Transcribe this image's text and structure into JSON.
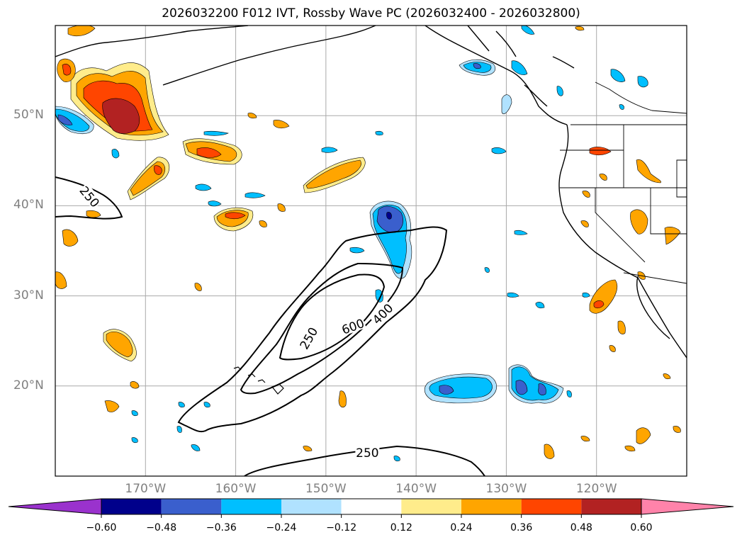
{
  "title": "2026032200 F012 IVT, Rossby Wave PC (2026032400 - 2026032800)",
  "map": {
    "lon_range": [
      -180,
      -110
    ],
    "lat_range": [
      10,
      60
    ],
    "lat_ticks": [
      {
        "value": 20,
        "label": "20°N"
      },
      {
        "value": 30,
        "label": "30°N"
      },
      {
        "value": 40,
        "label": "40°N"
      },
      {
        "value": 50,
        "label": "50°N"
      }
    ],
    "lon_ticks": [
      {
        "value": -170,
        "label": "170°W"
      },
      {
        "value": -160,
        "label": "160°W"
      },
      {
        "value": -150,
        "label": "150°W"
      },
      {
        "value": -140,
        "label": "140°W"
      },
      {
        "value": -130,
        "label": "130°W"
      },
      {
        "value": -120,
        "label": "120°W"
      }
    ],
    "gridlines": true,
    "ivt_contour_labels": [
      {
        "text": "250",
        "lon": -176.2,
        "lat": 41.0,
        "angle": 50
      },
      {
        "text": "250",
        "lon": -151.9,
        "lat": 25.3,
        "angle": -60
      },
      {
        "text": "600",
        "lon": -147.0,
        "lat": 26.6,
        "angle": -20
      },
      {
        "text": "400",
        "lon": -143.7,
        "lat": 28.0,
        "angle": -45
      },
      {
        "text": "250",
        "lon": -145.4,
        "lat": 12.6,
        "angle": 0
      }
    ]
  },
  "colorbar": {
    "tick_labels": [
      "−0.60",
      "−0.48",
      "−0.36",
      "−0.24",
      "−0.12",
      "0.12",
      "0.24",
      "0.36",
      "0.48",
      "0.60"
    ],
    "colors": [
      "#9a32cd",
      "#00008b",
      "#3a5fcd",
      "#00bfff",
      "#b0e2ff",
      "#ffffff",
      "#ffec8b",
      "#ffa500",
      "#ff4500",
      "#b22222",
      "#ff83aa"
    ]
  }
}
